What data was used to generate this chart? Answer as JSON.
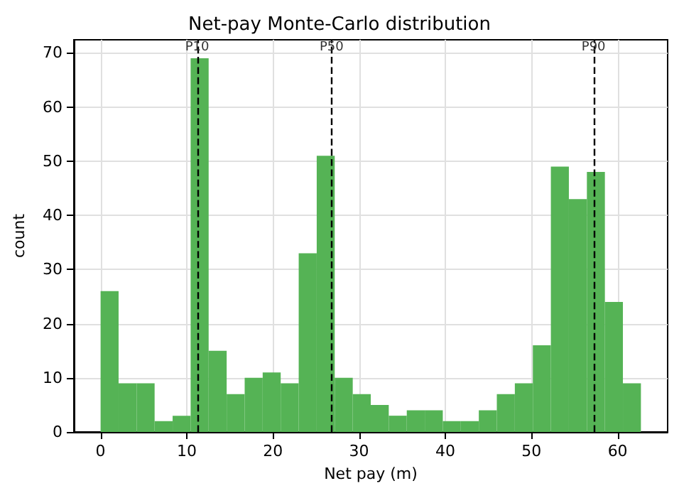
{
  "chart_data": {
    "type": "histogram",
    "title": "Net-pay Monte-Carlo distribution",
    "xlabel": "Net pay (m)",
    "ylabel": "count",
    "bins": [
      0,
      2.09,
      4.18,
      6.27,
      8.36,
      10.45,
      12.54,
      14.63,
      16.72,
      18.81,
      20.9,
      22.99,
      25.08,
      27.17,
      29.26,
      31.35,
      33.44,
      35.53,
      37.62,
      39.71,
      41.8,
      43.89,
      45.98,
      48.07,
      50.16,
      52.25,
      54.34,
      56.43,
      58.52,
      60.61,
      62.7
    ],
    "values": [
      26,
      9,
      9,
      2,
      3,
      69,
      15,
      7,
      10,
      11,
      9,
      33,
      51,
      10,
      7,
      5,
      3,
      4,
      4,
      2,
      2,
      4,
      7,
      9,
      16,
      49,
      43,
      48,
      24,
      9
    ],
    "color": "#55b355",
    "xlim": [
      -3.1,
      65.8
    ],
    "xticks": [
      0,
      10,
      20,
      30,
      40,
      50,
      60
    ],
    "ylim": [
      0,
      72.4
    ],
    "yticks": [
      0,
      10,
      20,
      30,
      40,
      50,
      60,
      70
    ],
    "grid": true,
    "ref_lines": [
      {
        "axis": "x",
        "value": 11.2,
        "label": "P10",
        "color": "#000000",
        "line_style": "dashed"
      },
      {
        "axis": "x",
        "value": 26.8,
        "label": "P50",
        "color": "#000000",
        "line_style": "dashed"
      },
      {
        "axis": "x",
        "value": 57.2,
        "label": "P90",
        "color": "#000000",
        "line_style": "dashed"
      }
    ]
  }
}
